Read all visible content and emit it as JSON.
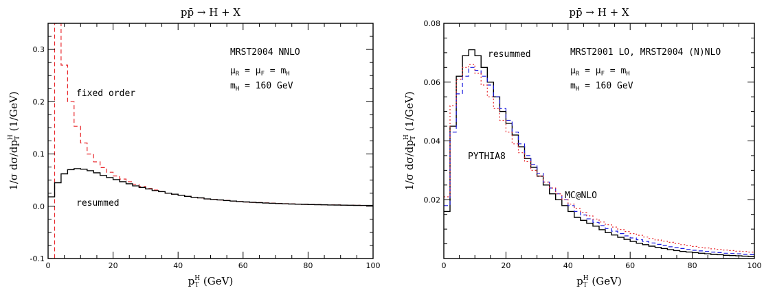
{
  "colors": {
    "resummed": "#000000",
    "fixed_order": "#e8262a",
    "pythia8": "#e8262a",
    "mcatnlo": "#1a1adf"
  },
  "chart_data": [
    {
      "type": "line",
      "title": "pp̄ → H + X",
      "xlabel": "p_T^H (GeV)",
      "ylabel": "1/σ dσ/dp_T^H (1/GeV)",
      "xlim": [
        0,
        100
      ],
      "ylim": [
        -0.1,
        0.35
      ],
      "xticks": [
        0,
        20,
        40,
        60,
        80,
        100
      ],
      "yticks": [
        -0.1,
        0.0,
        0.1,
        0.2,
        0.3
      ],
      "annotations": {
        "pdf": "MRST2004 NNLO",
        "scales": "μ_R = μ_F = m_H",
        "mass": "m_H = 160 GeV"
      },
      "series": [
        {
          "name": "fixed order",
          "style": "dashed",
          "color": "#e8262a",
          "x": [
            0,
            2,
            4,
            6,
            8,
            10,
            12,
            14,
            16,
            18,
            20,
            22,
            24,
            26,
            28,
            30,
            32,
            34,
            36,
            38,
            40,
            42,
            44,
            46,
            48,
            50,
            52,
            54,
            56,
            58,
            60,
            62,
            64,
            66,
            68,
            70,
            72,
            74,
            76,
            78,
            80,
            82,
            84,
            86,
            88,
            90,
            92,
            94,
            96,
            98,
            100
          ],
          "y": [
            -0.1,
            0.35,
            0.27,
            0.2,
            0.153,
            0.121,
            0.1,
            0.085,
            0.074,
            0.065,
            0.058,
            0.052,
            0.047,
            0.042,
            0.038,
            0.034,
            0.031,
            0.028,
            0.025,
            0.023,
            0.021,
            0.019,
            0.017,
            0.016,
            0.014,
            0.013,
            0.012,
            0.011,
            0.01,
            0.009,
            0.008,
            0.0075,
            0.007,
            0.0065,
            0.006,
            0.0055,
            0.005,
            0.0045,
            0.004,
            0.0037,
            0.0034,
            0.0031,
            0.0028,
            0.0026,
            0.0024,
            0.0022,
            0.002,
            0.0018,
            0.0016,
            0.0015,
            0.0014
          ]
        },
        {
          "name": "resummed",
          "style": "solid",
          "color": "#000000",
          "x": [
            0,
            2,
            4,
            6,
            8,
            10,
            12,
            14,
            16,
            18,
            20,
            22,
            24,
            26,
            28,
            30,
            32,
            34,
            36,
            38,
            40,
            42,
            44,
            46,
            48,
            50,
            52,
            54,
            56,
            58,
            60,
            62,
            64,
            66,
            68,
            70,
            72,
            74,
            76,
            78,
            80,
            82,
            84,
            86,
            88,
            90,
            92,
            94,
            96,
            98,
            100
          ],
          "y": [
            0.018,
            0.045,
            0.062,
            0.07,
            0.072,
            0.071,
            0.068,
            0.064,
            0.059,
            0.055,
            0.051,
            0.047,
            0.043,
            0.039,
            0.036,
            0.033,
            0.03,
            0.028,
            0.025,
            0.023,
            0.021,
            0.019,
            0.017,
            0.016,
            0.014,
            0.013,
            0.012,
            0.011,
            0.01,
            0.009,
            0.0082,
            0.0075,
            0.0068,
            0.0062,
            0.0057,
            0.0052,
            0.0047,
            0.0043,
            0.0039,
            0.0036,
            0.0033,
            0.003,
            0.0027,
            0.0025,
            0.0023,
            0.0021,
            0.0019,
            0.0017,
            0.0016,
            0.0015,
            0.0014
          ]
        }
      ]
    },
    {
      "type": "line",
      "title": "pp̄ → H + X",
      "xlabel": "p_T^H (GeV)",
      "ylabel": "1/σ dσ/dp_T^H (1/GeV)",
      "xlim": [
        0,
        100
      ],
      "ylim": [
        0,
        0.08
      ],
      "xticks": [
        0,
        20,
        40,
        60,
        80,
        100
      ],
      "yticks": [
        0.02,
        0.04,
        0.06,
        0.08
      ],
      "annotations": {
        "pdf": "MRST2001 LO, MRST2004 (N)NLO",
        "scales": "μ_R = μ_F = m_H",
        "mass": "m_H = 160 GeV"
      },
      "series": [
        {
          "name": "resummed",
          "style": "solid",
          "color": "#000000",
          "x": [
            0,
            2,
            4,
            6,
            8,
            10,
            12,
            14,
            16,
            18,
            20,
            22,
            24,
            26,
            28,
            30,
            32,
            34,
            36,
            38,
            40,
            42,
            44,
            46,
            48,
            50,
            52,
            54,
            56,
            58,
            60,
            62,
            64,
            66,
            68,
            70,
            72,
            74,
            76,
            78,
            80,
            82,
            84,
            86,
            88,
            90,
            92,
            94,
            96,
            98,
            100
          ],
          "y": [
            0.016,
            0.045,
            0.062,
            0.069,
            0.071,
            0.069,
            0.065,
            0.06,
            0.055,
            0.05,
            0.046,
            0.042,
            0.038,
            0.034,
            0.031,
            0.028,
            0.025,
            0.022,
            0.02,
            0.018,
            0.016,
            0.014,
            0.013,
            0.012,
            0.011,
            0.0098,
            0.0088,
            0.008,
            0.0072,
            0.0065,
            0.0058,
            0.0052,
            0.0047,
            0.0042,
            0.0038,
            0.0034,
            0.003,
            0.0027,
            0.0024,
            0.0022,
            0.002,
            0.0018,
            0.0016,
            0.0014,
            0.0013,
            0.0011,
            0.001,
            0.0009,
            0.0008,
            0.0007,
            0.0006
          ]
        },
        {
          "name": "MC@NLO",
          "style": "dashed",
          "color": "#1a1adf",
          "x": [
            0,
            2,
            4,
            6,
            8,
            10,
            12,
            14,
            16,
            18,
            20,
            22,
            24,
            26,
            28,
            30,
            32,
            34,
            36,
            38,
            40,
            42,
            44,
            46,
            48,
            50,
            52,
            54,
            56,
            58,
            60,
            62,
            64,
            66,
            68,
            70,
            72,
            74,
            76,
            78,
            80,
            82,
            84,
            86,
            88,
            90,
            92,
            94,
            96,
            98,
            100
          ],
          "y": [
            0.018,
            0.043,
            0.056,
            0.062,
            0.065,
            0.064,
            0.062,
            0.059,
            0.055,
            0.051,
            0.047,
            0.043,
            0.039,
            0.035,
            0.032,
            0.029,
            0.026,
            0.024,
            0.022,
            0.02,
            0.018,
            0.016,
            0.0148,
            0.0135,
            0.0123,
            0.0112,
            0.0102,
            0.0093,
            0.0085,
            0.0077,
            0.007,
            0.0064,
            0.0058,
            0.0053,
            0.0048,
            0.0044,
            0.004,
            0.0037,
            0.0034,
            0.0031,
            0.0028,
            0.0026,
            0.0024,
            0.0022,
            0.002,
            0.0018,
            0.0017,
            0.0016,
            0.0014,
            0.0013,
            0.0012
          ]
        },
        {
          "name": "PYTHIA8",
          "style": "dotted",
          "color": "#e8262a",
          "x": [
            0,
            2,
            4,
            6,
            8,
            10,
            12,
            14,
            16,
            18,
            20,
            22,
            24,
            26,
            28,
            30,
            32,
            34,
            36,
            38,
            40,
            42,
            44,
            46,
            48,
            50,
            52,
            54,
            56,
            58,
            60,
            62,
            64,
            66,
            68,
            70,
            72,
            74,
            76,
            78,
            80,
            82,
            84,
            86,
            88,
            90,
            92,
            94,
            96,
            98,
            100
          ],
          "y": [
            0.021,
            0.052,
            0.061,
            0.065,
            0.066,
            0.063,
            0.059,
            0.055,
            0.051,
            0.047,
            0.043,
            0.039,
            0.036,
            0.033,
            0.03,
            0.028,
            0.026,
            0.024,
            0.022,
            0.02,
            0.0185,
            0.017,
            0.0157,
            0.0145,
            0.0134,
            0.0124,
            0.0115,
            0.0107,
            0.0099,
            0.0092,
            0.0085,
            0.0079,
            0.0073,
            0.0068,
            0.0063,
            0.0059,
            0.0055,
            0.0051,
            0.0047,
            0.0044,
            0.0041,
            0.0038,
            0.0036,
            0.0033,
            0.0031,
            0.0029,
            0.0027,
            0.0025,
            0.0024,
            0.0022,
            0.0021
          ]
        }
      ]
    }
  ]
}
